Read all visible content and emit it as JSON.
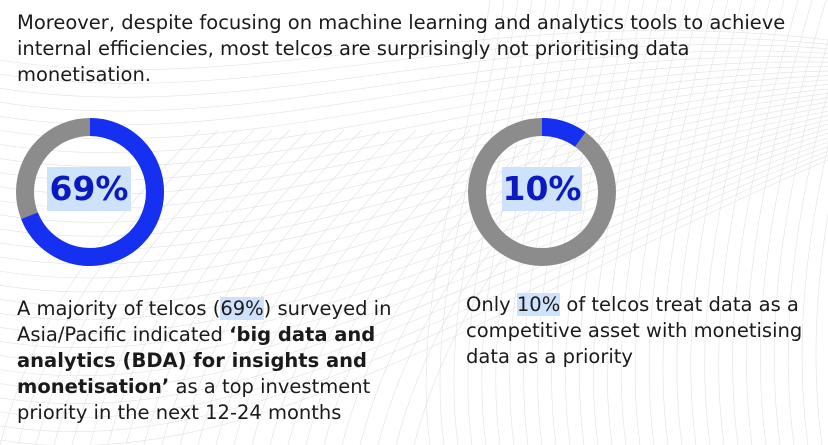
{
  "intro": "Moreover, despite focusing on machine learning and analytics tools to achieve internal efficiencies, most telcos are surprisingly not prioritising data monetisation.",
  "stats": [
    {
      "value_label": "69%",
      "percent": 69,
      "caption": {
        "part1": "A majority of telcos (",
        "highlight": "69%",
        "part2": ") surveyed in Asia/Pacific indicated ",
        "bold": "‘big data and analytics (BDA) for insights and monetisation’",
        "part3": " as a top investment priority in the next 12-24 months"
      }
    },
    {
      "value_label": "10%",
      "percent": 10,
      "caption": {
        "part1": "Only ",
        "highlight": "10%",
        "part2": " of telcos treat data as a competitive asset with monetising data as a priority"
      }
    }
  ],
  "colors": {
    "ring_fill": "#1530f0",
    "ring_track": "#8c8c8c",
    "highlight": "#cfe2fb",
    "value_text": "#0a1ac0"
  }
}
